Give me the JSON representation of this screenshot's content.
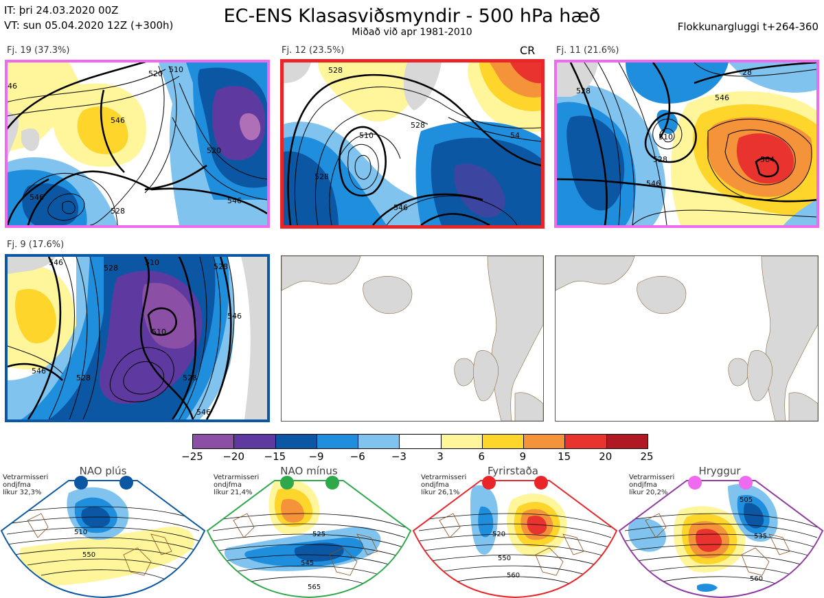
{
  "header": {
    "it_line": "IT: þri 24.03.2020 00Z",
    "vt_line": "VT: sun 05.04.2020 12Z  (+300h)",
    "title": "EC-ENS Klasasviðsmyndir - 500 hPa hæð",
    "subtitle": "Miðað við apr 1981-2010",
    "window": "Flokkunargluggi t+264-360"
  },
  "panels": [
    {
      "label": "Fj. 19 (37.3%)",
      "border_color": "#ee6aee",
      "regime": "Hryggur",
      "contours": [
        "520",
        "510",
        "546",
        "528",
        "546",
        "520",
        "546",
        "528",
        "546"
      ]
    },
    {
      "label": "Fj. 12 (23.5%)",
      "border_color": "#e8262a",
      "regime": "Fyrirstaða",
      "tag": "CR",
      "contours": [
        "528",
        "528",
        "510",
        "528",
        "546",
        "54"
      ]
    },
    {
      "label": "Fj. 11 (21.6%)",
      "border_color": "#ee6aee",
      "regime": "Hryggur",
      "contours": [
        "528",
        "546",
        "510",
        "528",
        "564",
        "546"
      ]
    },
    {
      "label": "Fj. 9 (17.6%)",
      "border_color": "#0b57a4",
      "regime": "NAO plús",
      "contours": [
        "546",
        "528",
        "510",
        "546",
        "528",
        "546",
        "528",
        "546"
      ]
    }
  ],
  "colorbar": {
    "ticks": [
      "−25",
      "−20",
      "−15",
      "−9",
      "−6",
      "−3",
      "3",
      "6",
      "9",
      "15",
      "20",
      "25"
    ],
    "colors": [
      "#8b4fa6",
      "#5e3aa0",
      "#0b57a4",
      "#1f8fdd",
      "#7fc3ee",
      "#ffffff",
      "#fff59b",
      "#fdd52b",
      "#f5933a",
      "#e8332f",
      "#b01823"
    ]
  },
  "regimes": [
    {
      "title": "NAO plús",
      "stat": [
        "Vetrarmisseri",
        "ondjfma",
        "líkur 32,3%"
      ],
      "color": "#0b57a4",
      "contours": [
        "510",
        "550"
      ]
    },
    {
      "title": "NAO mínus",
      "stat": [
        "Vetrarmisseri",
        "ondjfma",
        "líkur 21,4%"
      ],
      "color": "#2ea84a",
      "contours": [
        "525",
        "545",
        "565"
      ]
    },
    {
      "title": "Fyrirstaða",
      "stat": [
        "Vetrarmisseri",
        "ondjfma",
        "líkur 26,1%"
      ],
      "color": "#e8262a",
      "contours": [
        "520",
        "550",
        "560"
      ]
    },
    {
      "title": "Hryggur",
      "stat": [
        "Vetrarmisseri",
        "ondjfma",
        "líkur 20,2%"
      ],
      "color": "#8e3aa0",
      "contours": [
        "505",
        "535",
        "560"
      ]
    }
  ]
}
